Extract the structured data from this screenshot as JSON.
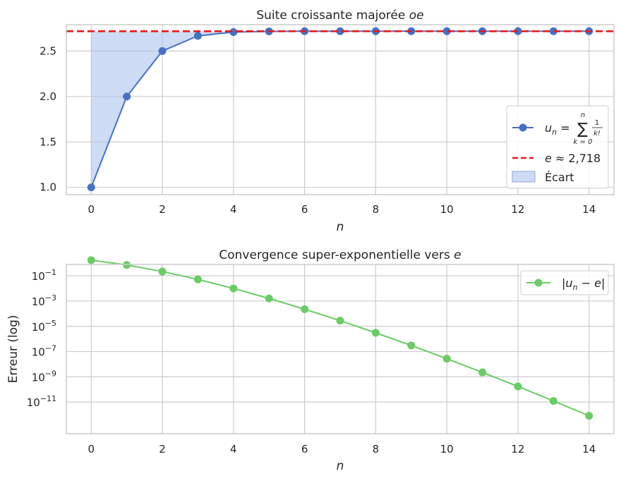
{
  "chart_data": [
    {
      "type": "line",
      "title": "Suite croissante majorée oe",
      "xlabel": "n",
      "ylabel": "",
      "xlim": [
        -0.7,
        14.7
      ],
      "ylim": [
        0.92,
        2.79
      ],
      "xticks": [
        0,
        2,
        4,
        6,
        8,
        10,
        12,
        14
      ],
      "xtick_labels": [
        "0",
        "2",
        "4",
        "6",
        "8",
        "10",
        "12",
        "14"
      ],
      "yticks": [
        1.0,
        1.5,
        2.0,
        2.5
      ],
      "ytick_labels": [
        "1.0",
        "1.5",
        "2.0",
        "2.5"
      ],
      "grid": true,
      "legend_position": "lower right",
      "x": [
        0,
        1,
        2,
        3,
        4,
        5,
        6,
        7,
        8,
        9,
        10,
        11,
        12,
        13,
        14
      ],
      "series": [
        {
          "name": "u_n = Σ_{k=0}^{n} 1/k!",
          "legend_main": "u",
          "legend_sub": "n",
          "legend_eq": " = ",
          "legend_sum": "∑",
          "legend_sum_top": "n",
          "legend_sum_bottom": "k = 0",
          "legend_frac_num": "1",
          "legend_frac_den": "k!",
          "values": [
            1.0,
            2.0,
            2.5,
            2.6667,
            2.7083,
            2.7167,
            2.7181,
            2.7183,
            2.7183,
            2.7183,
            2.7183,
            2.7183,
            2.7183,
            2.7183,
            2.7183
          ],
          "color": "#4472c4"
        },
        {
          "name": "e ≈ 2,718",
          "legend_label": "e ≈ 2,718",
          "value": 2.718,
          "style": "dashed",
          "color": "#e8191c"
        },
        {
          "name": "Écart",
          "legend_label": "Écart",
          "style": "fill",
          "color": "#aec3ec"
        }
      ]
    },
    {
      "type": "line",
      "title": "Convergence super-exponentielle vers e",
      "xlabel": "n",
      "ylabel": "Erreur (log)",
      "yscale": "log",
      "xlim": [
        -0.7,
        14.7
      ],
      "ylim_log10": [
        -13.5,
        -0.1
      ],
      "xticks": [
        0,
        2,
        4,
        6,
        8,
        10,
        12,
        14
      ],
      "xtick_labels": [
        "0",
        "2",
        "4",
        "6",
        "8",
        "10",
        "12",
        "14"
      ],
      "yticks_exp": [
        -1,
        -3,
        -5,
        -7,
        -9,
        -11
      ],
      "ytick_base": "10",
      "ytick_exp_labels": [
        "−1",
        "−3",
        "−5",
        "−7",
        "−9",
        "−11"
      ],
      "grid": true,
      "legend_position": "upper right",
      "x": [
        0,
        1,
        2,
        3,
        4,
        5,
        6,
        7,
        8,
        9,
        10,
        11,
        12,
        13,
        14
      ],
      "series": [
        {
          "name": "|u_n − e|",
          "legend_label": "|u",
          "legend_sub": "n",
          "legend_tail": " − e|",
          "values": [
            1.718,
            0.718,
            0.218,
            0.0516,
            0.00995,
            0.00161,
            0.000226,
            2.79e-05,
            3.05e-06,
            3.03e-07,
            2.73e-08,
            2.26e-09,
            1.73e-10,
            1.23e-11,
            8.2e-13
          ],
          "color": "#6acc64"
        }
      ]
    }
  ]
}
